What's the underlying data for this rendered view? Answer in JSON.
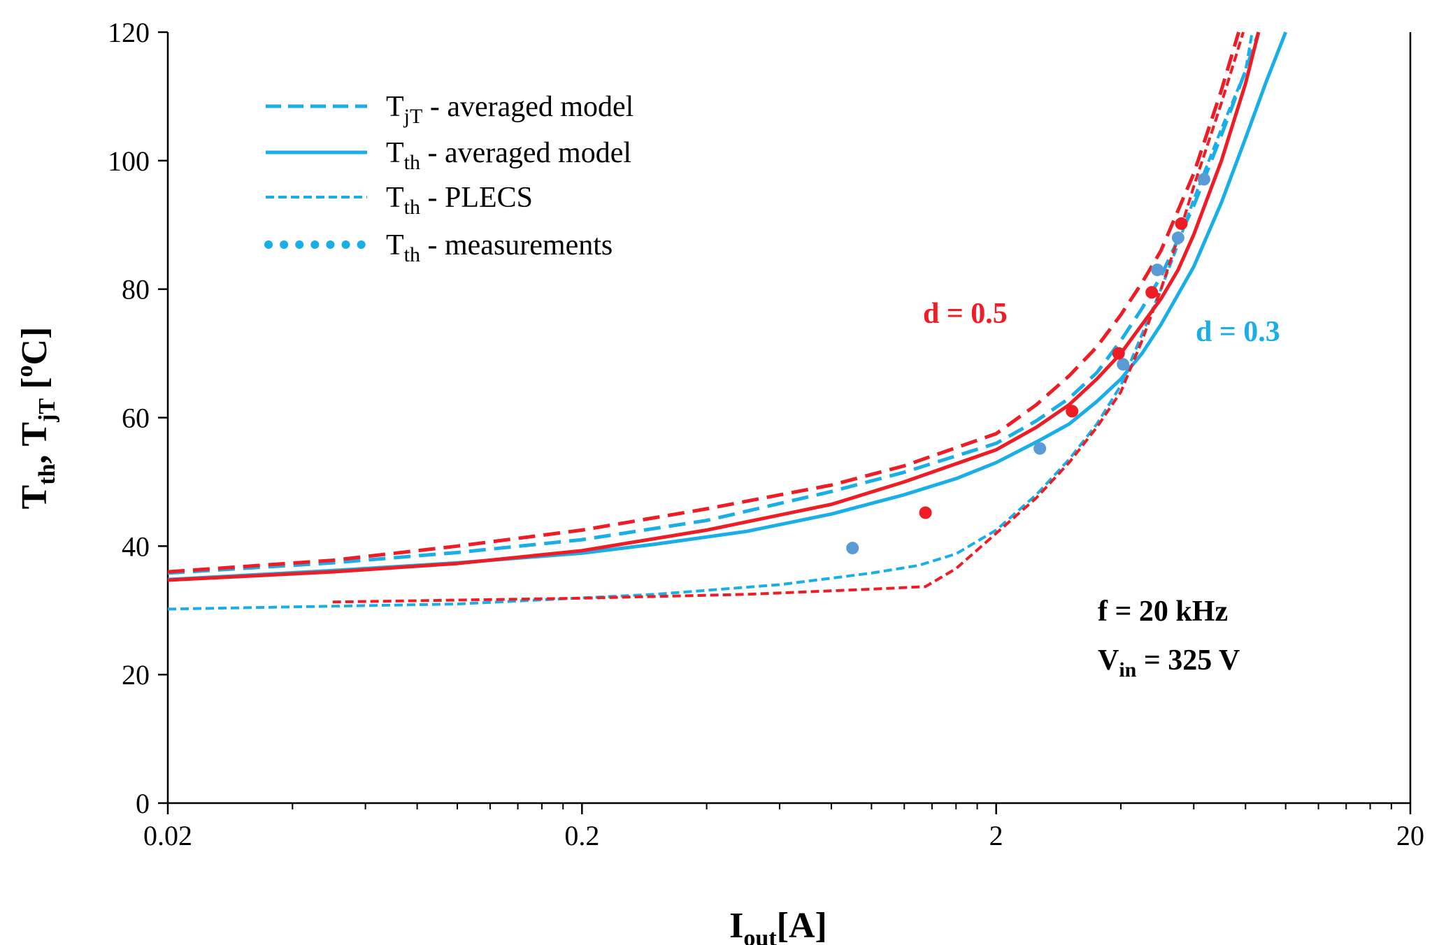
{
  "chart_data": {
    "type": "line",
    "xscale": "log",
    "xlim": [
      0.02,
      20
    ],
    "ylim": [
      0,
      120
    ],
    "xticks": [
      {
        "value": 0.02,
        "label": "0.02"
      },
      {
        "value": 0.2,
        "label": "0.2"
      },
      {
        "value": 2,
        "label": "2"
      },
      {
        "value": 20,
        "label": "20"
      }
    ],
    "yticks": [
      {
        "value": 0,
        "label": "0"
      },
      {
        "value": 20,
        "label": "20"
      },
      {
        "value": 40,
        "label": "40"
      },
      {
        "value": 60,
        "label": "60"
      },
      {
        "value": 80,
        "label": "80"
      },
      {
        "value": 100,
        "label": "100"
      },
      {
        "value": 120,
        "label": "120"
      }
    ],
    "xlabel": {
      "main": "I",
      "sub": "out",
      "rest": "[A]"
    },
    "ylabel": {
      "p1": "T",
      "s1": "th",
      "p2": ", T",
      "s2": "jT",
      "p3": " [",
      "sup": "o",
      "p4": "C]"
    },
    "legend": [
      {
        "style": "dashed",
        "main": "T",
        "sub": "jT",
        "rest": " - averaged model"
      },
      {
        "style": "solid",
        "main": "T",
        "sub": "th",
        "rest": " - averaged model"
      },
      {
        "style": "fine-dashed",
        "main": "T",
        "sub": "th",
        "rest": " - PLECS"
      },
      {
        "style": "dotted",
        "main": "T",
        "sub": "th",
        "rest": " - measurements"
      }
    ],
    "annotations": {
      "d05": {
        "text": "d = 0.5",
        "color": "#ee1c24"
      },
      "d03": {
        "text": "d = 0.3",
        "color": "#1aaee6"
      },
      "freq": "f = 20 kHz",
      "vin": {
        "main": "V",
        "sub": "in",
        "rest": " = 325 V"
      }
    },
    "colors": {
      "blue": "#1aaee6",
      "red": "#ee1c24",
      "blue_point": "#5b9bd5",
      "red_point": "#ee1c24"
    },
    "series": [
      {
        "name": "Tth averaged model d=0.3",
        "color": "blue",
        "style": "solid",
        "points": [
          [
            0.02,
            34.8
          ],
          [
            0.05,
            36.2
          ],
          [
            0.1,
            37.4
          ],
          [
            0.2,
            38.9
          ],
          [
            0.3,
            40.3
          ],
          [
            0.5,
            42.3
          ],
          [
            0.8,
            45.0
          ],
          [
            1.2,
            48.0
          ],
          [
            1.6,
            50.5
          ],
          [
            2.0,
            53.0
          ],
          [
            2.5,
            56.2
          ],
          [
            3.0,
            59.0
          ],
          [
            3.5,
            62.5
          ],
          [
            4.0,
            66.0
          ],
          [
            4.5,
            70.0
          ],
          [
            5.0,
            74.5
          ],
          [
            6.0,
            83.5
          ],
          [
            7.0,
            93.5
          ],
          [
            8.0,
            103.5
          ],
          [
            9.0,
            112.5
          ],
          [
            10.0,
            120.0
          ]
        ]
      },
      {
        "name": "TjT averaged model d=0.3",
        "color": "blue",
        "style": "dashed",
        "points": [
          [
            0.02,
            35.8
          ],
          [
            0.05,
            37.4
          ],
          [
            0.1,
            39.0
          ],
          [
            0.2,
            41.0
          ],
          [
            0.4,
            44.0
          ],
          [
            0.8,
            48.5
          ],
          [
            1.2,
            51.5
          ],
          [
            2.0,
            56.0
          ],
          [
            2.5,
            59.5
          ],
          [
            3.0,
            63.0
          ],
          [
            3.5,
            67.0
          ],
          [
            4.0,
            72.0
          ],
          [
            4.5,
            77.0
          ],
          [
            5.0,
            82.0
          ],
          [
            6.0,
            93.0
          ],
          [
            7.0,
            104.0
          ],
          [
            8.0,
            114.0
          ],
          [
            8.6,
            120.0
          ]
        ]
      },
      {
        "name": "Tth PLECS d=0.3",
        "color": "blue",
        "style": "fine-dashed",
        "points": [
          [
            0.02,
            30.2
          ],
          [
            0.1,
            31.0
          ],
          [
            0.3,
            32.5
          ],
          [
            0.6,
            34.0
          ],
          [
            1.0,
            35.8
          ],
          [
            1.3,
            37.0
          ],
          [
            1.6,
            38.8
          ],
          [
            2.0,
            42.5
          ],
          [
            2.5,
            48.0
          ],
          [
            3.0,
            53.5
          ],
          [
            3.5,
            59.0
          ],
          [
            4.0,
            65.0
          ],
          [
            4.5,
            73.0
          ],
          [
            5.0,
            80.0
          ],
          [
            5.5,
            87.0
          ],
          [
            6.0,
            94.0
          ],
          [
            7.0,
            105.0
          ],
          [
            8.0,
            114.0
          ],
          [
            8.3,
            120.0
          ]
        ]
      },
      {
        "name": "Tth averaged model d=0.5",
        "color": "red",
        "style": "solid",
        "points": [
          [
            0.02,
            34.7
          ],
          [
            0.05,
            36.0
          ],
          [
            0.1,
            37.3
          ],
          [
            0.2,
            39.3
          ],
          [
            0.4,
            42.5
          ],
          [
            0.8,
            46.5
          ],
          [
            1.2,
            50.0
          ],
          [
            2.0,
            55.0
          ],
          [
            2.5,
            58.5
          ],
          [
            3.0,
            62.0
          ],
          [
            3.5,
            66.0
          ],
          [
            4.0,
            70.0
          ],
          [
            4.5,
            74.5
          ],
          [
            5.0,
            78.5
          ],
          [
            5.5,
            83.0
          ],
          [
            6.0,
            88.5
          ],
          [
            7.0,
            100.0
          ],
          [
            8.0,
            112.0
          ],
          [
            8.6,
            120.0
          ]
        ]
      },
      {
        "name": "TjT averaged model d=0.5",
        "color": "red",
        "style": "dashed",
        "points": [
          [
            0.02,
            36.0
          ],
          [
            0.05,
            37.8
          ],
          [
            0.1,
            40.0
          ],
          [
            0.2,
            42.5
          ],
          [
            0.4,
            45.8
          ],
          [
            0.8,
            49.5
          ],
          [
            1.2,
            52.5
          ],
          [
            2.0,
            57.5
          ],
          [
            2.5,
            62.0
          ],
          [
            3.0,
            66.5
          ],
          [
            3.5,
            71.0
          ],
          [
            4.0,
            76.0
          ],
          [
            4.5,
            81.0
          ],
          [
            5.0,
            86.0
          ],
          [
            6.0,
            98.0
          ],
          [
            7.0,
            111.0
          ],
          [
            7.7,
            120.0
          ]
        ]
      },
      {
        "name": "Tth PLECS d=0.5",
        "color": "red",
        "style": "fine-dashed",
        "points": [
          [
            0.05,
            31.3
          ],
          [
            0.2,
            31.9
          ],
          [
            0.5,
            32.5
          ],
          [
            1.0,
            33.3
          ],
          [
            1.35,
            33.7
          ],
          [
            1.6,
            36.5
          ],
          [
            2.0,
            42.0
          ],
          [
            2.5,
            47.5
          ],
          [
            3.0,
            53.0
          ],
          [
            3.5,
            58.5
          ],
          [
            4.0,
            64.0
          ],
          [
            4.5,
            72.0
          ],
          [
            5.0,
            80.0
          ],
          [
            5.5,
            88.0
          ],
          [
            6.0,
            96.0
          ],
          [
            7.0,
            109.0
          ],
          [
            7.9,
            120.0
          ]
        ]
      }
    ],
    "measurements": [
      {
        "name": "d=0.3 measurements",
        "color": "blue_point",
        "points": [
          [
            0.9,
            39.7
          ],
          [
            2.55,
            55.2
          ],
          [
            4.05,
            68.3
          ],
          [
            4.9,
            83.0
          ],
          [
            5.5,
            88.0
          ],
          [
            6.35,
            97.1
          ]
        ]
      },
      {
        "name": "d=0.5 measurements",
        "color": "red_point",
        "points": [
          [
            1.35,
            45.2
          ],
          [
            3.05,
            61.0
          ],
          [
            3.95,
            70.0
          ],
          [
            4.75,
            79.5
          ],
          [
            5.6,
            90.2
          ]
        ]
      }
    ]
  }
}
